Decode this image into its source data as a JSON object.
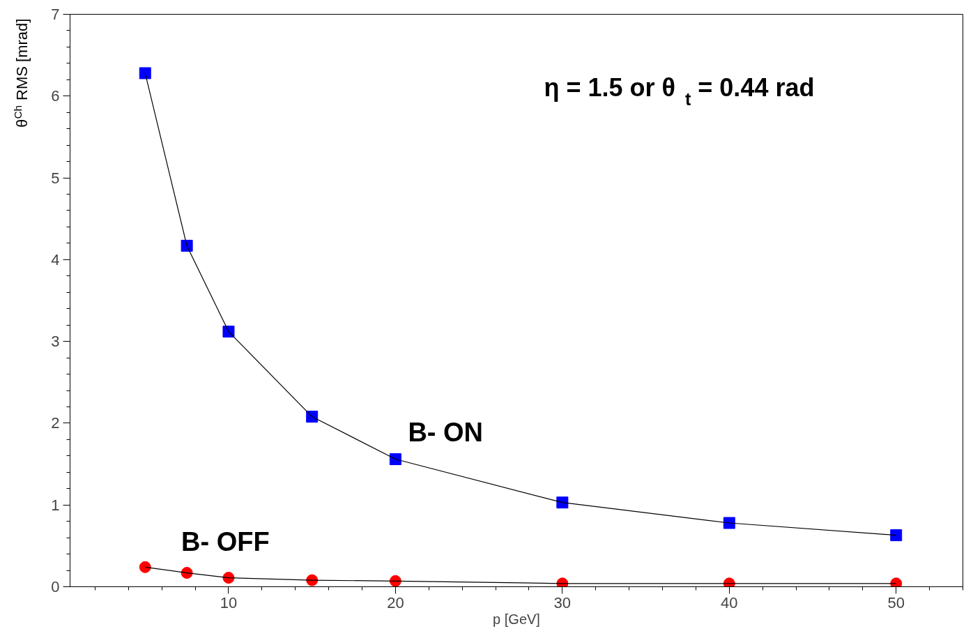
{
  "chart_data": {
    "type": "scatter",
    "xlabel": "p [GeV]",
    "ylabel": "θ$^{Ch}$ RMS [mrad]",
    "x": [
      5,
      7.5,
      10,
      15,
      20,
      30,
      40,
      50
    ],
    "series": [
      {
        "name": "B- ON",
        "color": "#0000ff",
        "marker": "square",
        "values": [
          6.28,
          4.17,
          3.12,
          2.08,
          1.56,
          1.03,
          0.78,
          0.63
        ]
      },
      {
        "name": "B- OFF",
        "color": "#ff0000",
        "marker": "circle",
        "values": [
          0.24,
          0.17,
          0.11,
          0.08,
          0.07,
          0.04,
          0.04,
          0.04
        ]
      },
      {
        "type": "line",
        "color": "#000000",
        "x": [
          5,
          7.5,
          10,
          15,
          20,
          30,
          40,
          50
        ],
        "values": [
          6.28,
          4.17,
          3.12,
          2.08,
          1.56,
          1.03,
          0.78,
          0.63
        ]
      },
      {
        "type": "line",
        "color": "#000000",
        "x": [
          5,
          7.5,
          10,
          15,
          20,
          30,
          40,
          50
        ],
        "values": [
          0.24,
          0.17,
          0.11,
          0.08,
          0.07,
          0.04,
          0.04,
          0.04
        ]
      }
    ],
    "annotations": [
      "η = 1.5 or  θ$_{t}$ = 0.44 rad"
    ],
    "xlim": [
      0.5,
      54
    ],
    "xticks": [
      10,
      20,
      30,
      40,
      50
    ],
    "ylim": [
      0,
      7
    ],
    "yticks": [
      0,
      1,
      2,
      3,
      4,
      5,
      6,
      7
    ],
    "grid": false
  }
}
